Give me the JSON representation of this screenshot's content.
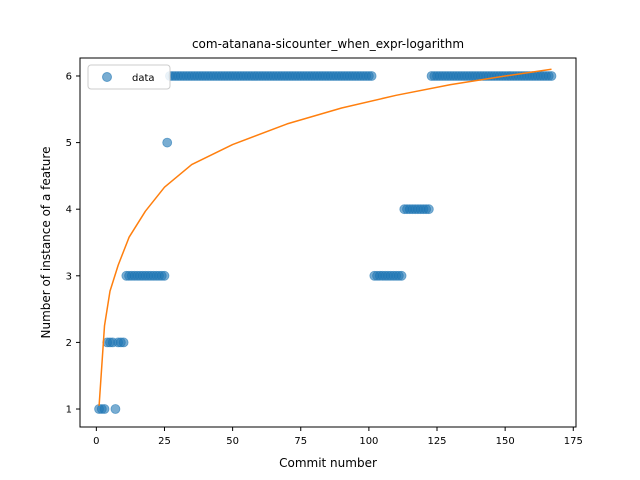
{
  "chart_data": {
    "type": "scatter",
    "title": "com-atanana-sicounter_when_expr-logarithm",
    "xlabel": "Commit number",
    "ylabel": "Number of instance of a feature",
    "xlim": [
      -6,
      176
    ],
    "ylim": [
      0.73,
      6.27
    ],
    "xticks": [
      0,
      25,
      50,
      75,
      100,
      125,
      150,
      175
    ],
    "yticks": [
      1,
      2,
      3,
      4,
      5,
      6
    ],
    "grid": false,
    "legend_position": "top-left",
    "series": [
      {
        "name": "data",
        "kind": "scatter",
        "color": "#1f77b4",
        "points": [
          [
            1,
            1
          ],
          [
            2,
            1
          ],
          [
            3,
            1
          ],
          [
            4,
            2
          ],
          [
            5,
            2
          ],
          [
            6,
            2
          ],
          [
            7,
            1
          ],
          [
            8,
            2
          ],
          [
            9,
            2
          ],
          [
            10,
            2
          ],
          [
            11,
            3
          ],
          [
            12,
            3
          ],
          [
            13,
            3
          ],
          [
            14,
            3
          ],
          [
            15,
            3
          ],
          [
            16,
            3
          ],
          [
            17,
            3
          ],
          [
            18,
            3
          ],
          [
            19,
            3
          ],
          [
            20,
            3
          ],
          [
            21,
            3
          ],
          [
            22,
            3
          ],
          [
            23,
            3
          ],
          [
            24,
            3
          ],
          [
            25,
            3
          ],
          [
            26,
            5
          ],
          [
            27,
            6
          ],
          [
            28,
            6
          ],
          [
            29,
            6
          ],
          [
            30,
            6
          ],
          [
            31,
            6
          ],
          [
            32,
            6
          ],
          [
            33,
            6
          ],
          [
            34,
            6
          ],
          [
            35,
            6
          ],
          [
            36,
            6
          ],
          [
            37,
            6
          ],
          [
            38,
            6
          ],
          [
            39,
            6
          ],
          [
            40,
            6
          ],
          [
            41,
            6
          ],
          [
            42,
            6
          ],
          [
            43,
            6
          ],
          [
            44,
            6
          ],
          [
            45,
            6
          ],
          [
            46,
            6
          ],
          [
            47,
            6
          ],
          [
            48,
            6
          ],
          [
            49,
            6
          ],
          [
            50,
            6
          ],
          [
            51,
            6
          ],
          [
            52,
            6
          ],
          [
            53,
            6
          ],
          [
            54,
            6
          ],
          [
            55,
            6
          ],
          [
            56,
            6
          ],
          [
            57,
            6
          ],
          [
            58,
            6
          ],
          [
            59,
            6
          ],
          [
            60,
            6
          ],
          [
            61,
            6
          ],
          [
            62,
            6
          ],
          [
            63,
            6
          ],
          [
            64,
            6
          ],
          [
            65,
            6
          ],
          [
            66,
            6
          ],
          [
            67,
            6
          ],
          [
            68,
            6
          ],
          [
            69,
            6
          ],
          [
            70,
            6
          ],
          [
            71,
            6
          ],
          [
            72,
            6
          ],
          [
            73,
            6
          ],
          [
            74,
            6
          ],
          [
            75,
            6
          ],
          [
            76,
            6
          ],
          [
            77,
            6
          ],
          [
            78,
            6
          ],
          [
            79,
            6
          ],
          [
            80,
            6
          ],
          [
            81,
            6
          ],
          [
            82,
            6
          ],
          [
            83,
            6
          ],
          [
            84,
            6
          ],
          [
            85,
            6
          ],
          [
            86,
            6
          ],
          [
            87,
            6
          ],
          [
            88,
            6
          ],
          [
            89,
            6
          ],
          [
            90,
            6
          ],
          [
            91,
            6
          ],
          [
            92,
            6
          ],
          [
            93,
            6
          ],
          [
            94,
            6
          ],
          [
            95,
            6
          ],
          [
            96,
            6
          ],
          [
            97,
            6
          ],
          [
            98,
            6
          ],
          [
            99,
            6
          ],
          [
            100,
            6
          ],
          [
            101,
            6
          ],
          [
            102,
            3
          ],
          [
            103,
            3
          ],
          [
            104,
            3
          ],
          [
            105,
            3
          ],
          [
            106,
            3
          ],
          [
            107,
            3
          ],
          [
            108,
            3
          ],
          [
            109,
            3
          ],
          [
            110,
            3
          ],
          [
            111,
            3
          ],
          [
            112,
            3
          ],
          [
            113,
            4
          ],
          [
            114,
            4
          ],
          [
            115,
            4
          ],
          [
            116,
            4
          ],
          [
            117,
            4
          ],
          [
            118,
            4
          ],
          [
            119,
            4
          ],
          [
            120,
            4
          ],
          [
            121,
            4
          ],
          [
            122,
            4
          ],
          [
            123,
            6
          ],
          [
            124,
            6
          ],
          [
            125,
            6
          ],
          [
            126,
            6
          ],
          [
            127,
            6
          ],
          [
            128,
            6
          ],
          [
            129,
            6
          ],
          [
            130,
            6
          ],
          [
            131,
            6
          ],
          [
            132,
            6
          ],
          [
            133,
            6
          ],
          [
            134,
            6
          ],
          [
            135,
            6
          ],
          [
            136,
            6
          ],
          [
            137,
            6
          ],
          [
            138,
            6
          ],
          [
            139,
            6
          ],
          [
            140,
            6
          ],
          [
            141,
            6
          ],
          [
            142,
            6
          ],
          [
            143,
            6
          ],
          [
            144,
            6
          ],
          [
            145,
            6
          ],
          [
            146,
            6
          ],
          [
            147,
            6
          ],
          [
            148,
            6
          ],
          [
            149,
            6
          ],
          [
            150,
            6
          ],
          [
            151,
            6
          ],
          [
            152,
            6
          ],
          [
            153,
            6
          ],
          [
            154,
            6
          ],
          [
            155,
            6
          ],
          [
            156,
            6
          ],
          [
            157,
            6
          ],
          [
            158,
            6
          ],
          [
            159,
            6
          ],
          [
            160,
            6
          ],
          [
            161,
            6
          ],
          [
            162,
            6
          ],
          [
            163,
            6
          ],
          [
            164,
            6
          ],
          [
            165,
            6
          ],
          [
            166,
            6
          ],
          [
            167,
            6
          ]
        ]
      },
      {
        "kind": "line",
        "color": "#ff7f0e",
        "fit": "logarithmic",
        "points": [
          [
            1,
            1.05
          ],
          [
            3,
            2.25
          ],
          [
            5,
            2.77
          ],
          [
            8,
            3.16
          ],
          [
            12,
            3.58
          ],
          [
            18,
            3.97
          ],
          [
            25,
            4.33
          ],
          [
            35,
            4.67
          ],
          [
            50,
            4.97
          ],
          [
            70,
            5.28
          ],
          [
            90,
            5.52
          ],
          [
            110,
            5.71
          ],
          [
            130,
            5.87
          ],
          [
            150,
            6.0
          ],
          [
            167,
            6.1
          ]
        ]
      }
    ]
  }
}
